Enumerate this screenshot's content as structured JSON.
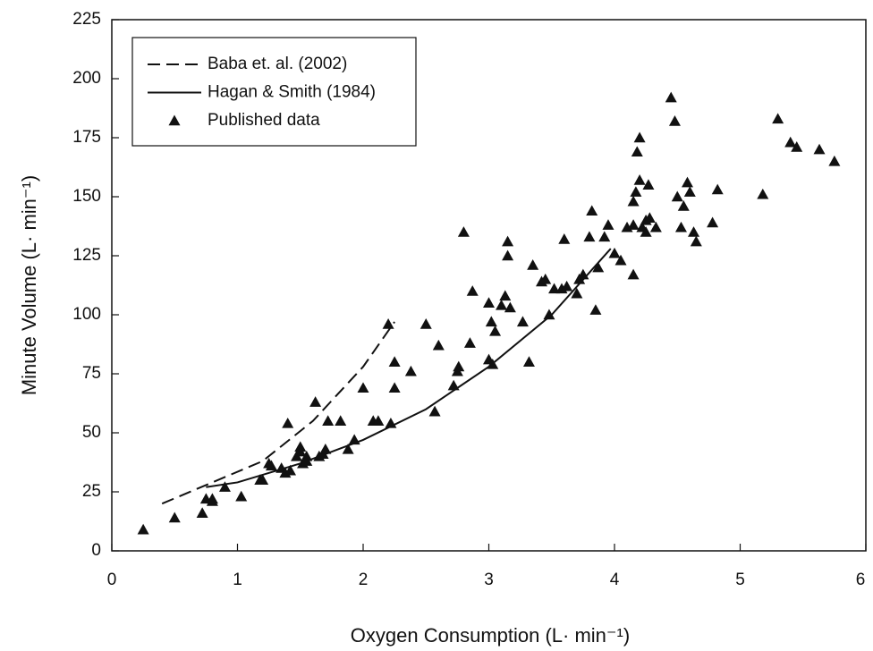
{
  "chart_data": {
    "type": "scatter",
    "x_label": "Oxygen Consumption (L· min⁻¹)",
    "y_label": "Minute Volume (L· min⁻¹)",
    "xlim": [
      0,
      6
    ],
    "xticks": [
      0,
      1,
      2,
      3,
      4,
      5,
      6
    ],
    "ylim": [
      0,
      225
    ],
    "yticks": [
      0,
      25,
      50,
      75,
      100,
      125,
      150,
      175,
      200,
      225
    ],
    "legend": "upper left",
    "series": [
      {
        "name": "Baba et. al. (2002)",
        "color": "#111111",
        "mode": "line",
        "line_style": "dashed",
        "x": [
          0.4,
          0.8,
          1.2,
          1.6,
          2.0,
          2.25
        ],
        "values": [
          20,
          29,
          38,
          55,
          78,
          97
        ]
      },
      {
        "name": "Hagan & Smith (1984)",
        "color": "#111111",
        "mode": "line",
        "line_style": "solid",
        "x": [
          0.75,
          1.0,
          1.5,
          2.0,
          2.5,
          3.0,
          3.5,
          3.97
        ],
        "values": [
          27,
          29,
          37,
          47,
          60,
          78,
          100,
          128
        ]
      },
      {
        "name": "Published data",
        "color": "#111111",
        "mode": "markers",
        "marker": "triangle",
        "x": [
          0.25,
          0.5,
          0.72,
          0.75,
          0.8,
          0.8,
          0.9,
          1.03,
          1.18,
          1.2,
          1.25,
          1.27,
          1.35,
          1.38,
          1.4,
          1.42,
          1.47,
          1.5,
          1.5,
          1.52,
          1.55,
          1.55,
          1.62,
          1.65,
          1.68,
          1.7,
          1.72,
          1.82,
          1.88,
          1.93,
          2.0,
          2.08,
          2.12,
          2.2,
          2.22,
          2.25,
          2.25,
          2.38,
          2.5,
          2.57,
          2.6,
          2.72,
          2.75,
          2.76,
          2.8,
          2.85,
          2.87,
          3.0,
          3.0,
          3.02,
          3.03,
          3.05,
          3.1,
          3.13,
          3.15,
          3.15,
          3.17,
          3.27,
          3.32,
          3.35,
          3.42,
          3.45,
          3.48,
          3.52,
          3.58,
          3.6,
          3.62,
          3.7,
          3.72,
          3.75,
          3.8,
          3.82,
          3.85,
          3.87,
          3.92,
          3.95,
          4.0,
          4.05,
          4.1,
          4.15,
          4.15,
          4.15,
          4.17,
          4.18,
          4.2,
          4.2,
          4.22,
          4.25,
          4.25,
          4.27,
          4.28,
          4.33,
          4.45,
          4.48,
          4.5,
          4.53,
          4.55,
          4.58,
          4.6,
          4.63,
          4.65,
          4.78,
          4.82,
          5.18,
          5.3,
          5.4,
          5.45,
          5.63,
          5.75
        ],
        "values": [
          9,
          14,
          16,
          22,
          22,
          21,
          27,
          23,
          30,
          30,
          37,
          36,
          35,
          33,
          54,
          34,
          40,
          44,
          42,
          37,
          38,
          40,
          63,
          40,
          41,
          43,
          55,
          55,
          43,
          47,
          69,
          55,
          55,
          96,
          54,
          69,
          80,
          76,
          96,
          59,
          87,
          70,
          76,
          78,
          135,
          88,
          110,
          105,
          81,
          97,
          79,
          93,
          104,
          108,
          125,
          131,
          103,
          97,
          80,
          121,
          114,
          115,
          100,
          111,
          111,
          132,
          112,
          109,
          115,
          117,
          133,
          144,
          102,
          120,
          133,
          138,
          126,
          123,
          137,
          138,
          148,
          117,
          152,
          169,
          157,
          175,
          137,
          140,
          135,
          155,
          141,
          137,
          192,
          182,
          150,
          137,
          146,
          156,
          152,
          135,
          131,
          139,
          153,
          151,
          183,
          173,
          171,
          170,
          165
        ]
      }
    ]
  }
}
